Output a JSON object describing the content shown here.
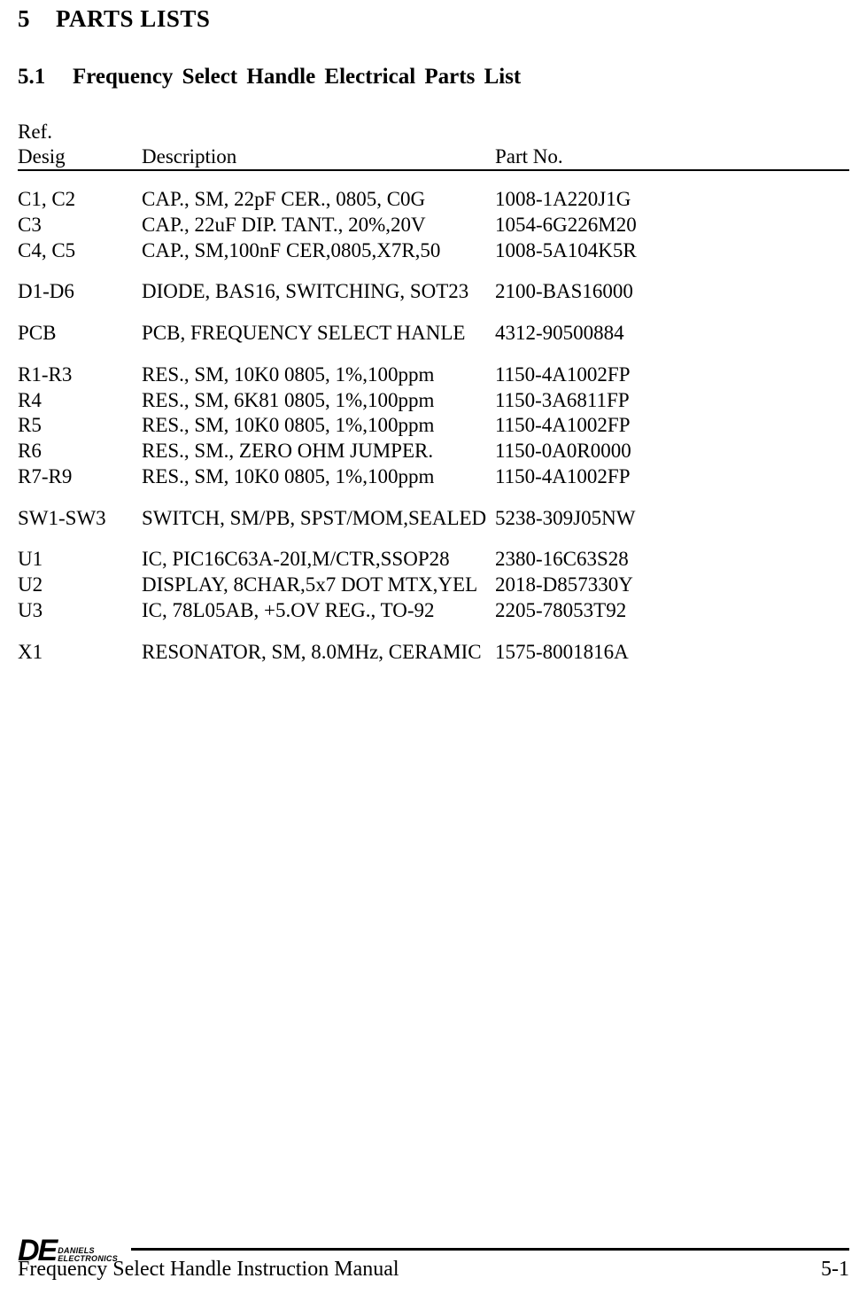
{
  "section": {
    "number": "5",
    "title": "PARTS LISTS"
  },
  "subsection": {
    "number": "5.1",
    "title": "Frequency Select Handle Electrical Parts List"
  },
  "headers": {
    "desig_line1": "Ref.",
    "desig_line2": "Desig",
    "description": "Description",
    "partno": "Part No."
  },
  "groups": [
    [
      {
        "desig": "C1, C2",
        "desc": "CAP., SM, 22pF CER., 0805, C0G",
        "part": "1008-1A220J1G"
      },
      {
        "desig": "C3",
        "desc": "CAP., 22uF DIP. TANT., 20%,20V",
        "part": "1054-6G226M20"
      },
      {
        "desig": "C4, C5",
        "desc": "CAP., SM,100nF CER,0805,X7R,50",
        "part": "1008-5A104K5R"
      }
    ],
    [
      {
        "desig": "D1-D6",
        "desc": "DIODE, BAS16, SWITCHING, SOT23",
        "part": "2100-BAS16000"
      }
    ],
    [
      {
        "desig": "PCB",
        "desc": "PCB, FREQUENCY SELECT HANLE",
        "part": "4312-90500884"
      }
    ],
    [
      {
        "desig": "R1-R3",
        "desc": "RES., SM, 10K0 0805, 1%,100ppm",
        "part": "1150-4A1002FP"
      },
      {
        "desig": "R4",
        "desc": "RES., SM, 6K81 0805, 1%,100ppm",
        "part": "1150-3A6811FP"
      },
      {
        "desig": "R5",
        "desc": "RES., SM, 10K0 0805, 1%,100ppm",
        "part": "1150-4A1002FP"
      },
      {
        "desig": "R6",
        "desc": "RES., SM., ZERO OHM JUMPER.",
        "part": "1150-0A0R0000"
      },
      {
        "desig": "R7-R9",
        "desc": "RES., SM, 10K0 0805, 1%,100ppm",
        "part": "1150-4A1002FP"
      }
    ],
    [
      {
        "desig": "SW1-SW3",
        "desc": "SWITCH, SM/PB, SPST/MOM,SEALED",
        "part": "5238-309J05NW"
      }
    ],
    [
      {
        "desig": "U1",
        "desc": "IC, PIC16C63A-20I,M/CTR,SSOP28",
        "part": "2380-16C63S28"
      },
      {
        "desig": "U2",
        "desc": "DISPLAY, 8CHAR,5x7 DOT MTX,YEL",
        "part": "2018-D857330Y"
      },
      {
        "desig": "U3",
        "desc": "IC, 78L05AB, +5.OV REG., TO-92",
        "part": "2205-78053T92"
      }
    ],
    [
      {
        "desig": "X1",
        "desc": "RESONATOR, SM, 8.0MHz, CERAMIC",
        "part": "1575-8001816A"
      }
    ]
  ],
  "footer": {
    "brand_de": "DE",
    "brand_line1": "DANIELS",
    "brand_line2": "ELECTRONICS",
    "doc_title": "Frequency Select Handle Instruction Manual",
    "page_number": "5-1"
  },
  "colors": {
    "text": "#000000",
    "background": "#ffffff",
    "rule": "#000000"
  },
  "typography": {
    "body_family": "Times New Roman",
    "body_size_pt": 17,
    "heading_size_pt": 20,
    "brand_family": "Arial"
  }
}
